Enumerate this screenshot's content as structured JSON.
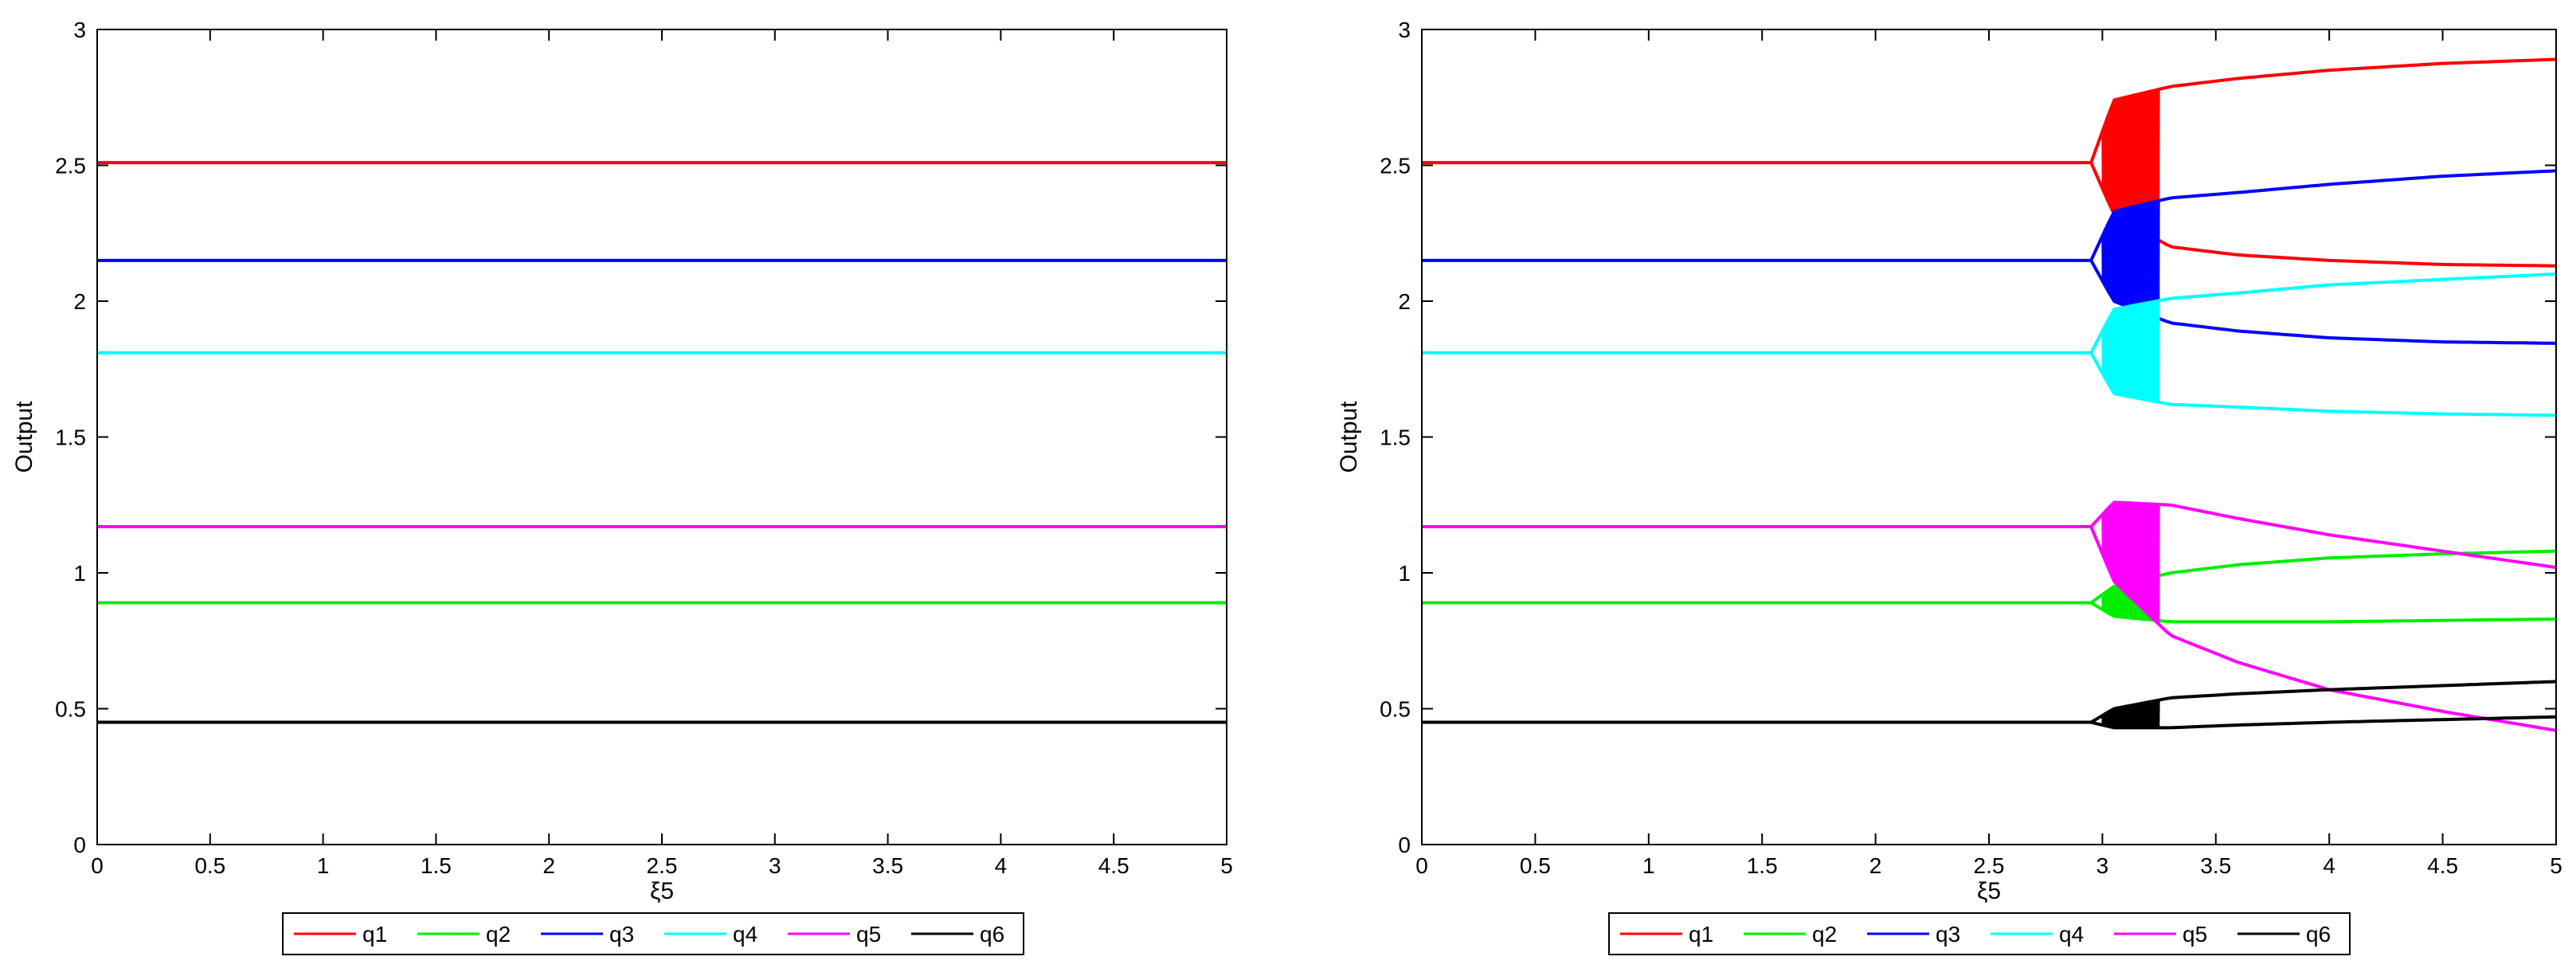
{
  "chart_data": [
    {
      "type": "line",
      "xlabel": "ξ5",
      "ylabel": "Output",
      "xlim": [
        0,
        5
      ],
      "ylim": [
        0,
        3
      ],
      "xticks": [
        "0",
        "0.5",
        "1",
        "1.5",
        "2",
        "2.5",
        "3",
        "3.5",
        "4",
        "4.5",
        "5"
      ],
      "yticks": [
        "0",
        "0.5",
        "1",
        "1.5",
        "2",
        "2.5",
        "3"
      ],
      "grid": false,
      "legend_position": "bottom",
      "x": [
        0,
        5
      ],
      "series": [
        {
          "name": "q1",
          "color": "#ff0000",
          "values": [
            2.51,
            2.51
          ]
        },
        {
          "name": "q2",
          "color": "#00ee00",
          "values": [
            0.89,
            0.89
          ]
        },
        {
          "name": "q3",
          "color": "#0000ff",
          "values": [
            2.15,
            2.15
          ]
        },
        {
          "name": "q4",
          "color": "#00ffff",
          "values": [
            1.81,
            1.81
          ]
        },
        {
          "name": "q5",
          "color": "#ff00ff",
          "values": [
            1.17,
            1.17
          ]
        },
        {
          "name": "q6",
          "color": "#000000",
          "values": [
            0.45,
            0.45
          ]
        }
      ]
    },
    {
      "type": "line",
      "xlabel": "ξ5",
      "ylabel": "Output",
      "xlim": [
        0,
        5
      ],
      "ylim": [
        0,
        3
      ],
      "xticks": [
        "0",
        "0.5",
        "1",
        "1.5",
        "2",
        "2.5",
        "3",
        "3.5",
        "4",
        "4.5",
        "5"
      ],
      "yticks": [
        "0",
        "0.5",
        "1",
        "1.5",
        "2",
        "2.5",
        "3"
      ],
      "grid": false,
      "legend_position": "bottom",
      "bifurcation_start": 2.95,
      "oscillation_region": [
        3.0,
        3.25
      ],
      "series": [
        {
          "name": "q1",
          "color": "#ff0000",
          "base": 2.51,
          "upper": {
            "x": [
              2.95,
              3.05,
              3.3,
              3.6,
              4.0,
              4.5,
              5.0
            ],
            "y": [
              2.51,
              2.74,
              2.79,
              2.82,
              2.85,
              2.875,
              2.89
            ]
          },
          "lower": {
            "x": [
              2.95,
              3.05,
              3.3,
              3.6,
              4.0,
              4.5,
              5.0
            ],
            "y": [
              2.51,
              2.32,
              2.2,
              2.17,
              2.15,
              2.135,
              2.13
            ]
          },
          "osc_amp": 0.21
        },
        {
          "name": "q2",
          "color": "#00ee00",
          "base": 0.89,
          "upper": {
            "x": [
              2.95,
              3.05,
              3.3,
              3.6,
              4.0,
              4.5,
              5.0
            ],
            "y": [
              0.89,
              0.95,
              1.0,
              1.03,
              1.055,
              1.07,
              1.08
            ]
          },
          "lower": {
            "x": [
              2.95,
              3.05,
              3.3,
              3.6,
              4.0,
              4.5,
              5.0
            ],
            "y": [
              0.89,
              0.84,
              0.82,
              0.82,
              0.82,
              0.825,
              0.83
            ]
          },
          "osc_amp": 0.09
        },
        {
          "name": "q3",
          "color": "#0000ff",
          "base": 2.15,
          "upper": {
            "x": [
              2.95,
              3.05,
              3.3,
              3.6,
              4.0,
              4.5,
              5.0
            ],
            "y": [
              2.15,
              2.33,
              2.38,
              2.4,
              2.43,
              2.46,
              2.48
            ]
          },
          "lower": {
            "x": [
              2.95,
              3.05,
              3.3,
              3.6,
              4.0,
              4.5,
              5.0
            ],
            "y": [
              2.15,
              2.0,
              1.92,
              1.89,
              1.865,
              1.85,
              1.845
            ]
          },
          "osc_amp": 0.16
        },
        {
          "name": "q4",
          "color": "#00ffff",
          "base": 1.81,
          "upper": {
            "x": [
              2.95,
              3.05,
              3.3,
              3.6,
              4.0,
              4.5,
              5.0
            ],
            "y": [
              1.81,
              1.97,
              2.01,
              2.03,
              2.06,
              2.08,
              2.1
            ]
          },
          "lower": {
            "x": [
              2.95,
              3.05,
              3.3,
              3.6,
              4.0,
              4.5,
              5.0
            ],
            "y": [
              1.81,
              1.66,
              1.62,
              1.61,
              1.595,
              1.585,
              1.58
            ]
          },
          "osc_amp": 0.14
        },
        {
          "name": "q5",
          "color": "#ff00ff",
          "base": 1.17,
          "upper": {
            "x": [
              2.95,
              3.05,
              3.3,
              3.6,
              4.0,
              4.5,
              5.0
            ],
            "y": [
              1.17,
              1.26,
              1.25,
              1.2,
              1.14,
              1.08,
              1.02
            ]
          },
          "lower": {
            "x": [
              2.95,
              3.05,
              3.3,
              3.6,
              4.0,
              4.5,
              5.0
            ],
            "y": [
              1.17,
              0.97,
              0.77,
              0.67,
              0.57,
              0.49,
              0.42
            ]
          },
          "osc_amp": 0.2
        },
        {
          "name": "q6",
          "color": "#000000",
          "base": 0.45,
          "upper": {
            "x": [
              2.95,
              3.05,
              3.3,
              3.6,
              4.0,
              4.5,
              5.0
            ],
            "y": [
              0.45,
              0.5,
              0.54,
              0.555,
              0.57,
              0.585,
              0.6
            ]
          },
          "lower": {
            "x": [
              2.95,
              3.05,
              3.3,
              3.6,
              4.0,
              4.5,
              5.0
            ],
            "y": [
              0.45,
              0.43,
              0.43,
              0.44,
              0.45,
              0.46,
              0.47
            ]
          },
          "osc_amp": 0.05
        }
      ]
    }
  ]
}
